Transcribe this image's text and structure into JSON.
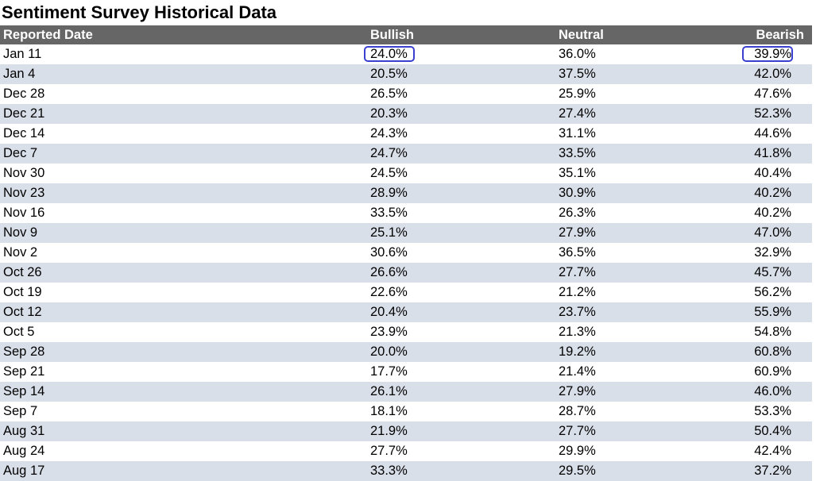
{
  "title": "Sentiment Survey Historical Data",
  "columns": {
    "date": "Reported Date",
    "bullish": "Bullish",
    "neutral": "Neutral",
    "bearish": "Bearish"
  },
  "rows": [
    {
      "date": "Jan 11",
      "bullish": "24.0%",
      "neutral": "36.0%",
      "bearish": "39.9%"
    },
    {
      "date": "Jan 4",
      "bullish": "20.5%",
      "neutral": "37.5%",
      "bearish": "42.0%"
    },
    {
      "date": "Dec 28",
      "bullish": "26.5%",
      "neutral": "25.9%",
      "bearish": "47.6%"
    },
    {
      "date": "Dec 21",
      "bullish": "20.3%",
      "neutral": "27.4%",
      "bearish": "52.3%"
    },
    {
      "date": "Dec 14",
      "bullish": "24.3%",
      "neutral": "31.1%",
      "bearish": "44.6%"
    },
    {
      "date": "Dec 7",
      "bullish": "24.7%",
      "neutral": "33.5%",
      "bearish": "41.8%"
    },
    {
      "date": "Nov 30",
      "bullish": "24.5%",
      "neutral": "35.1%",
      "bearish": "40.4%"
    },
    {
      "date": "Nov 23",
      "bullish": "28.9%",
      "neutral": "30.9%",
      "bearish": "40.2%"
    },
    {
      "date": "Nov 16",
      "bullish": "33.5%",
      "neutral": "26.3%",
      "bearish": "40.2%"
    },
    {
      "date": "Nov 9",
      "bullish": "25.1%",
      "neutral": "27.9%",
      "bearish": "47.0%"
    },
    {
      "date": "Nov 2",
      "bullish": "30.6%",
      "neutral": "36.5%",
      "bearish": "32.9%"
    },
    {
      "date": "Oct 26",
      "bullish": "26.6%",
      "neutral": "27.7%",
      "bearish": "45.7%"
    },
    {
      "date": "Oct 19",
      "bullish": "22.6%",
      "neutral": "21.2%",
      "bearish": "56.2%"
    },
    {
      "date": "Oct 12",
      "bullish": "20.4%",
      "neutral": "23.7%",
      "bearish": "55.9%"
    },
    {
      "date": "Oct 5",
      "bullish": "23.9%",
      "neutral": "21.3%",
      "bearish": "54.8%"
    },
    {
      "date": "Sep 28",
      "bullish": "20.0%",
      "neutral": "19.2%",
      "bearish": "60.8%"
    },
    {
      "date": "Sep 21",
      "bullish": "17.7%",
      "neutral": "21.4%",
      "bearish": "60.9%"
    },
    {
      "date": "Sep 14",
      "bullish": "26.1%",
      "neutral": "27.9%",
      "bearish": "46.0%"
    },
    {
      "date": "Sep 7",
      "bullish": "18.1%",
      "neutral": "28.7%",
      "bearish": "53.3%"
    },
    {
      "date": "Aug 31",
      "bullish": "21.9%",
      "neutral": "27.7%",
      "bearish": "50.4%"
    },
    {
      "date": "Aug 24",
      "bullish": "27.7%",
      "neutral": "29.9%",
      "bearish": "42.4%"
    },
    {
      "date": "Aug 17",
      "bullish": "33.3%",
      "neutral": "29.5%",
      "bearish": "37.2%"
    }
  ],
  "highlights": {
    "color": "#3a3fd0",
    "row_index": 0,
    "cells": [
      "bullish",
      "bearish"
    ]
  },
  "colors": {
    "header_bg": "#666666",
    "header_text": "#ffffff",
    "stripe_bg": "#d9dfe9",
    "row_bg": "#ffffff"
  }
}
